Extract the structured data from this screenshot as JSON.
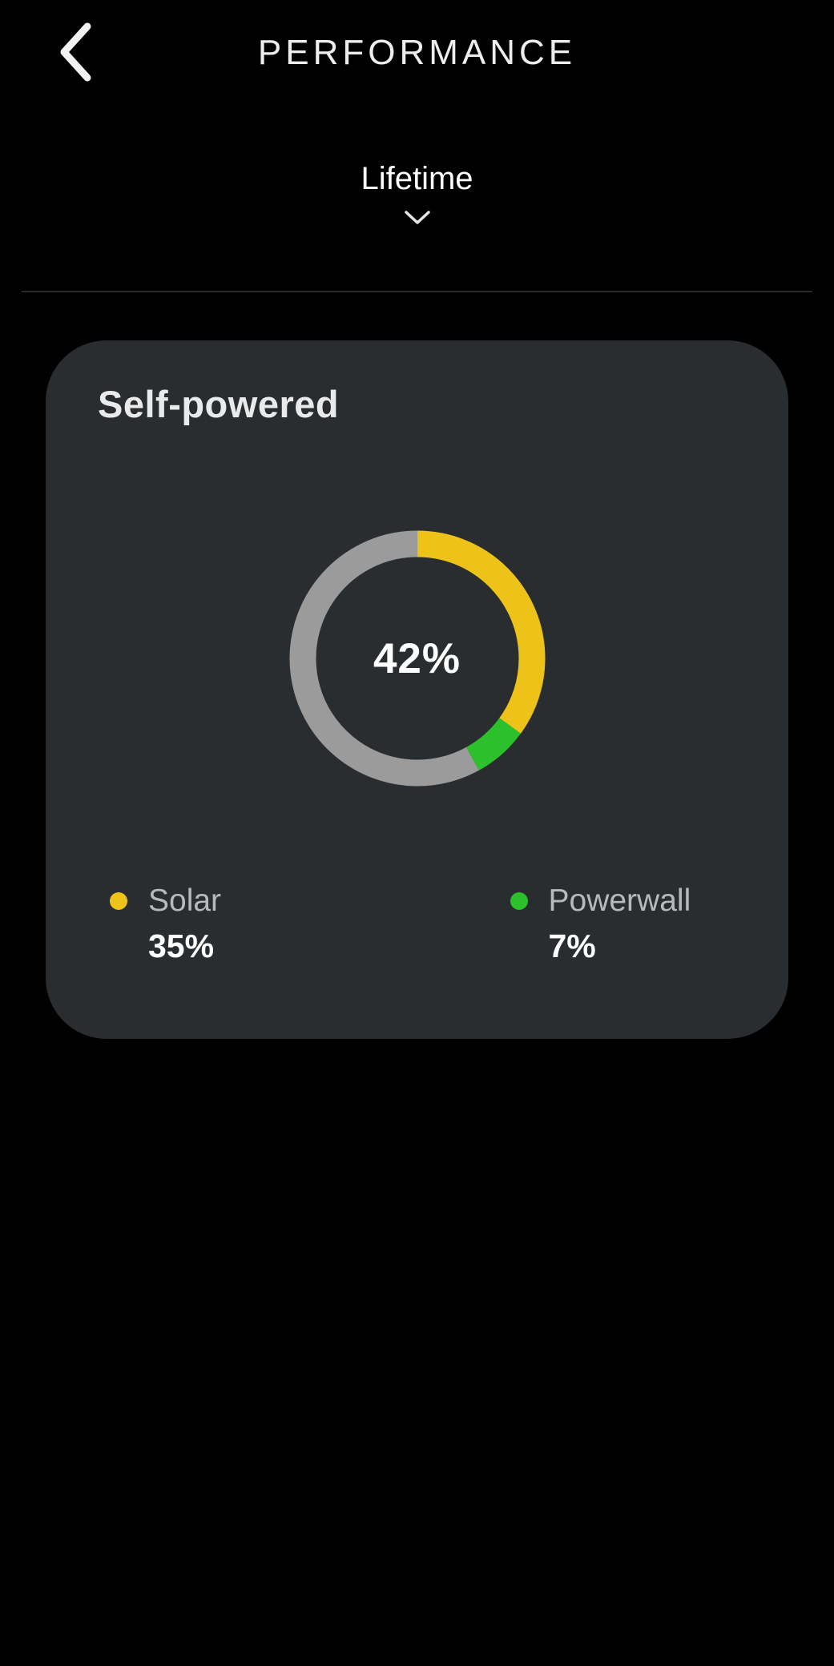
{
  "header": {
    "title": "PERFORMANCE"
  },
  "period_selector": {
    "value": "Lifetime"
  },
  "card": {
    "title": "Self-powered"
  },
  "chart_data": {
    "type": "pie",
    "subtype": "donut",
    "title": "Self-powered",
    "center_label": "42%",
    "start_angle": "top",
    "direction": "clockwise",
    "series": [
      {
        "name": "Solar",
        "value": 35,
        "color": "#edc319"
      },
      {
        "name": "Powerwall",
        "value": 7,
        "color": "#2bc02c"
      },
      {
        "name": "Remainder",
        "value": 58,
        "color": "#9b9b9b"
      }
    ],
    "legend": [
      {
        "label": "Solar",
        "value": "35%",
        "color": "#edc319"
      },
      {
        "label": "Powerwall",
        "value": "7%",
        "color": "#2bc02c"
      }
    ]
  },
  "colors": {
    "page_background": "#000000",
    "card_background": "#2a2d2f",
    "divider": "#2a2a2a",
    "solar": "#edc319",
    "powerwall": "#2bc02c",
    "ring_remainder": "#9b9b9b"
  }
}
